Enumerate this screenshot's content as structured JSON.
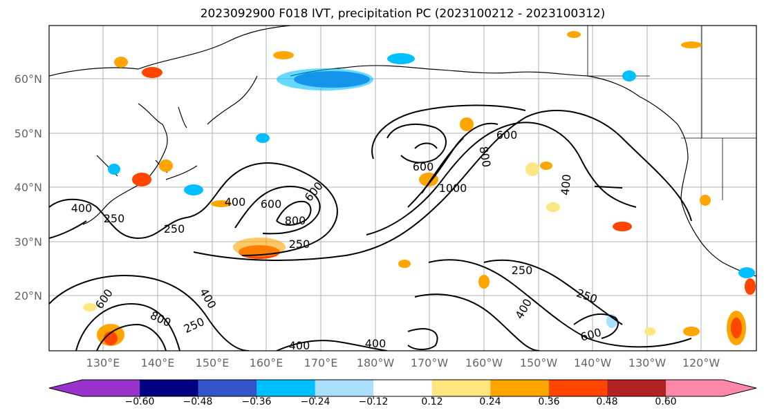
{
  "title": "2023092900 F018 IVT, precipitation PC (2023100212 - 2023100312)",
  "map": {
    "lat_labels": [
      "60°N",
      "50°N",
      "40°N",
      "30°N",
      "20°N"
    ],
    "lon_labels": [
      "130°E",
      "140°E",
      "150°E",
      "160°E",
      "170°E",
      "180°W",
      "170°W",
      "160°W",
      "150°W",
      "140°W",
      "130°W",
      "120°W"
    ],
    "land_color": "#ffffff",
    "ocean_color": "#ffffff",
    "grid_color": "#b0b0b0"
  },
  "contour_labels": [
    {
      "text": "400"
    },
    {
      "text": "250"
    },
    {
      "text": "400"
    },
    {
      "text": "600"
    },
    {
      "text": "800"
    },
    {
      "text": "250"
    },
    {
      "text": "600"
    },
    {
      "text": "1000"
    },
    {
      "text": "600"
    },
    {
      "text": "800"
    },
    {
      "text": "400"
    },
    {
      "text": "250"
    },
    {
      "text": "250"
    },
    {
      "text": "400"
    },
    {
      "text": "600"
    },
    {
      "text": "600"
    },
    {
      "text": "800"
    },
    {
      "text": "250"
    },
    {
      "text": "400"
    },
    {
      "text": "400"
    },
    {
      "text": "400"
    },
    {
      "text": "600"
    },
    {
      "text": "250"
    }
  ],
  "colorbar": {
    "colors": [
      "#9933cc",
      "#000080",
      "#3355cc",
      "#00bfff",
      "#aadfff",
      "#ffffff",
      "#ffe680",
      "#ffa500",
      "#ff4500",
      "#b22222",
      "#ff88aa"
    ],
    "tick_labels": [
      "−0.60",
      "−0.48",
      "−0.36",
      "−0.24",
      "−0.12",
      "0.12",
      "0.24",
      "0.36",
      "0.48",
      "0.60"
    ]
  }
}
